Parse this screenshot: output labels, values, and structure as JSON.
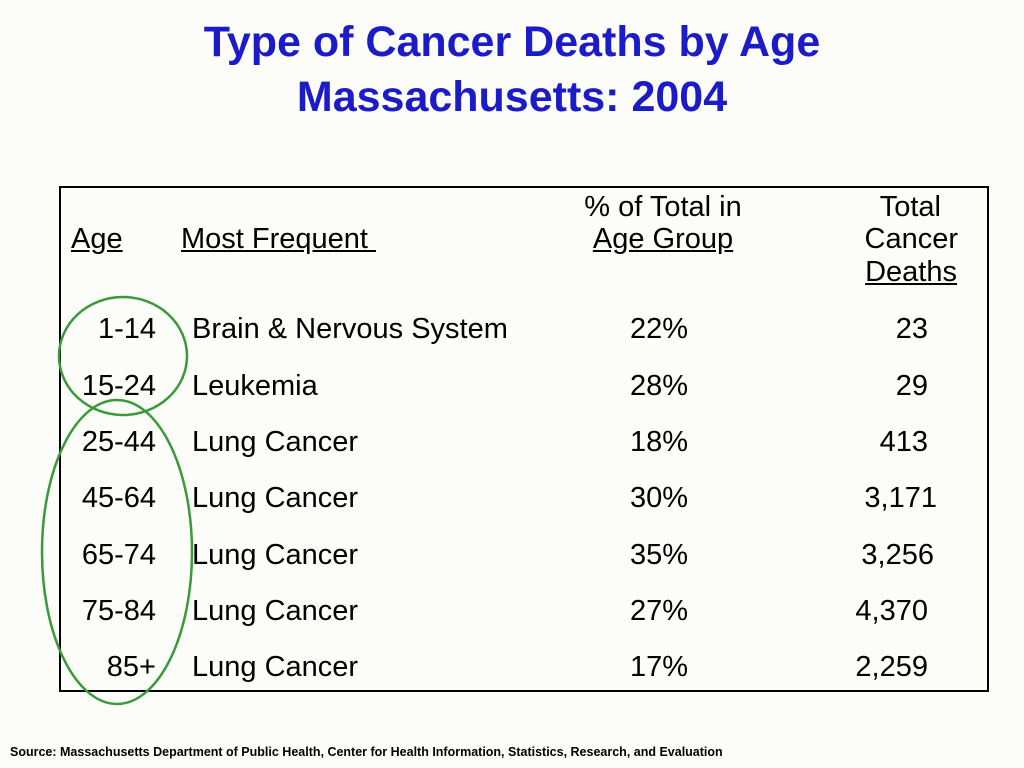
{
  "title": {
    "line1": "Type of Cancer Deaths by Age",
    "line2": "Massachusetts: 2004"
  },
  "table": {
    "headers": {
      "age": "Age",
      "most_frequent": "Most Frequent ",
      "pct_line1": "% of Total in",
      "pct_line2": "Age Group",
      "total_line1": "Total",
      "total_line2": "Cancer",
      "total_line3": "Deaths"
    },
    "rows": [
      {
        "age": "1-14",
        "type": "Brain & Nervous System",
        "pct": "22%",
        "deaths": "23"
      },
      {
        "age": "15-24",
        "type": "Leukemia",
        "pct": "28%",
        "deaths": "29"
      },
      {
        "age": "25-44",
        "type": "Lung Cancer",
        "pct": "18%",
        "deaths": "413"
      },
      {
        "age": "45-64",
        "type": "Lung Cancer",
        "pct": "30%",
        "deaths": "3,171"
      },
      {
        "age": "65-74",
        "type": "Lung Cancer",
        "pct": "35%",
        "deaths": "3,256"
      },
      {
        "age": "75-84",
        "type": "Lung Cancer",
        "pct": "27%",
        "deaths": "4,370"
      },
      {
        "age": "85+",
        "type": "Lung Cancer",
        "pct": "17%",
        "deaths": "2,259"
      }
    ]
  },
  "source": "Source:  Massachusetts Department of Public Health, Center for Health Information, Statistics, Research, and Evaluation",
  "colors": {
    "title": "#1b1bc8",
    "circle": "#3a9a3a"
  }
}
